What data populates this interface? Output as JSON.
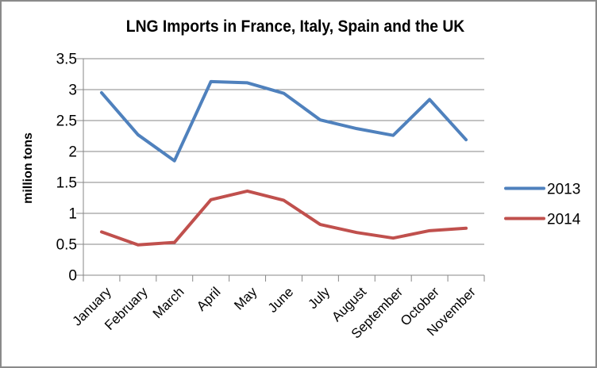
{
  "window": {
    "background": "#ffffff",
    "border_color": "#8a8a8a"
  },
  "chart_data": {
    "type": "line",
    "title": "LNG Imports in France, Italy, Spain and the UK",
    "xlabel": "",
    "ylabel": "million tons",
    "categories": [
      "January",
      "February",
      "March",
      "April",
      "May",
      "June",
      "July",
      "August",
      "September",
      "October",
      "November"
    ],
    "series": [
      {
        "name": "2013",
        "color": "#4F81BD",
        "values": [
          2.95,
          2.27,
          1.85,
          3.13,
          3.11,
          2.94,
          2.51,
          2.37,
          2.26,
          2.84,
          2.19
        ]
      },
      {
        "name": "2014",
        "color": "#C0504D",
        "values": [
          0.7,
          0.49,
          0.53,
          1.22,
          1.36,
          1.21,
          0.82,
          0.69,
          0.6,
          0.72,
          0.76
        ]
      }
    ],
    "ylim": [
      0,
      3.5
    ],
    "ytick_step": 0.5,
    "ytick_labels": [
      "0",
      "0.5",
      "1",
      "1.5",
      "2",
      "2.5",
      "3",
      "3.5"
    ],
    "grid": "horizontal",
    "legend_position": "right",
    "x_label_rotation_deg": 45,
    "axis_color": "#878787",
    "gridline_color": "#878787",
    "text_color": "#000000",
    "line_width": 4
  }
}
